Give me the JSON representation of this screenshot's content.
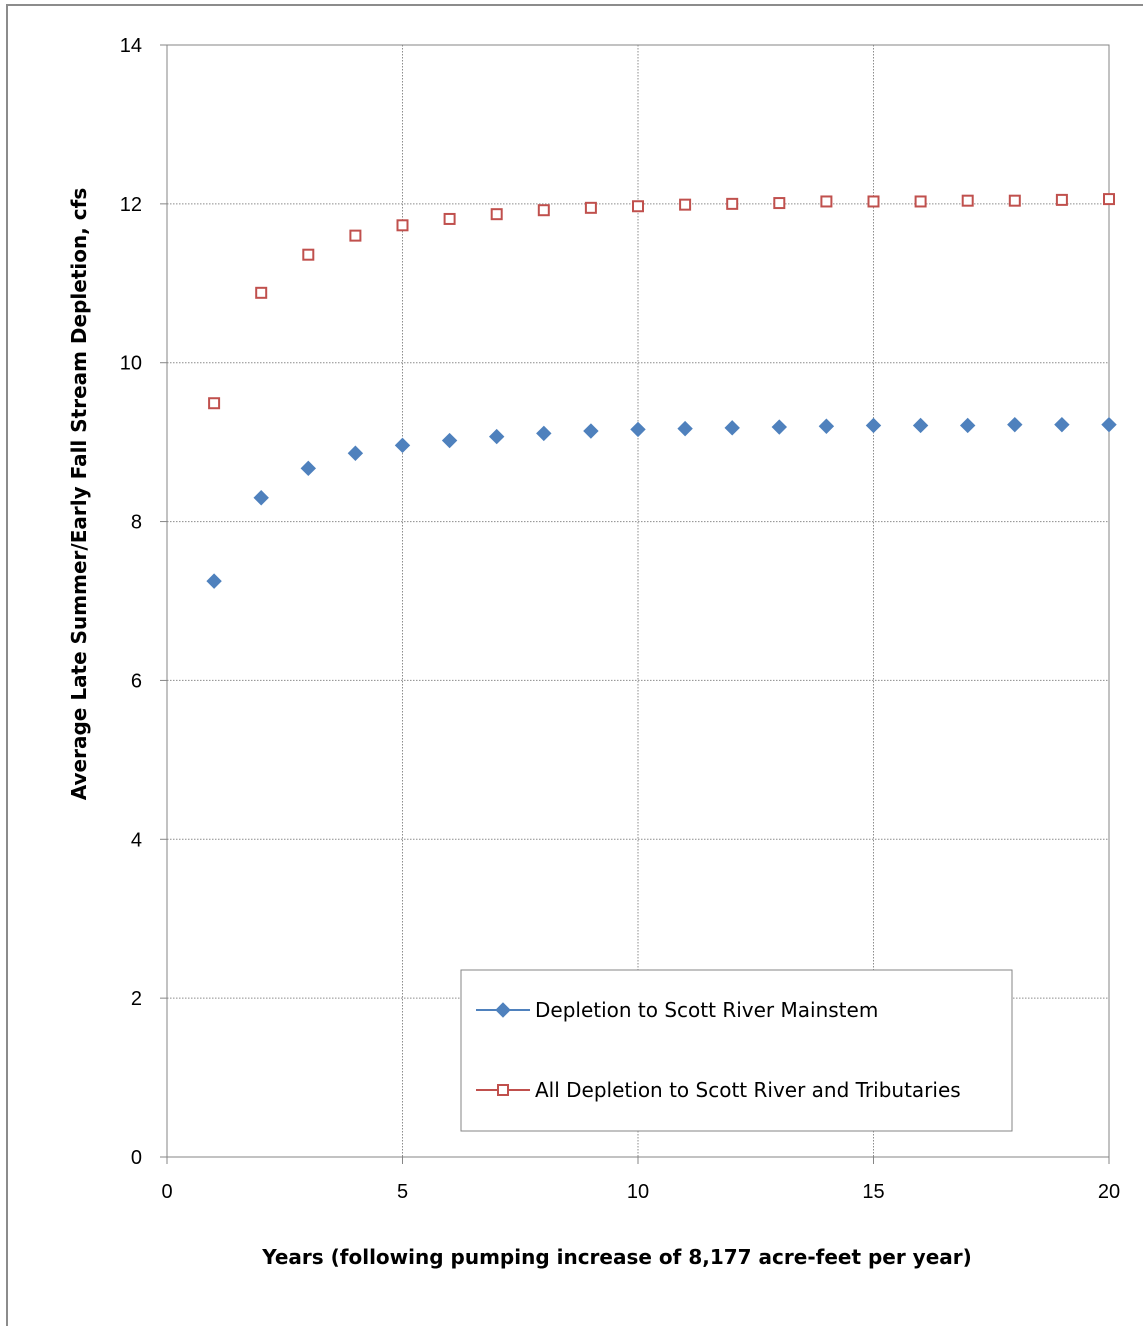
{
  "chart_data": {
    "type": "scatter",
    "title": "",
    "xlabel": "Years  (following pumping increase of 8,177 acre-feet per year)",
    "ylabel": "Average Late Summer/Early Fall Stream Depletion, cfs",
    "xlim": [
      0,
      20
    ],
    "ylim": [
      0,
      14
    ],
    "xticks": [
      0,
      5,
      10,
      15,
      20
    ],
    "yticks": [
      0,
      2,
      4,
      6,
      8,
      10,
      12,
      14
    ],
    "grid": true,
    "legend_position": "bottom-center",
    "series": [
      {
        "name": "Depletion to Scott River Mainstem",
        "marker": "filled-diamond",
        "color": "#4f81bd",
        "x": [
          1,
          2,
          3,
          4,
          5,
          6,
          7,
          8,
          9,
          10,
          11,
          12,
          13,
          14,
          15,
          16,
          17,
          18,
          19,
          20
        ],
        "y": [
          7.25,
          8.3,
          8.67,
          8.86,
          8.96,
          9.02,
          9.07,
          9.11,
          9.14,
          9.16,
          9.17,
          9.18,
          9.19,
          9.2,
          9.21,
          9.21,
          9.21,
          9.22,
          9.22,
          9.22
        ]
      },
      {
        "name": "All Depletion to Scott River and Tributaries",
        "marker": "open-square",
        "color": "#c0504d",
        "x": [
          1,
          2,
          3,
          4,
          5,
          6,
          7,
          8,
          9,
          10,
          11,
          12,
          13,
          14,
          15,
          16,
          17,
          18,
          19,
          20
        ],
        "y": [
          9.49,
          10.88,
          11.36,
          11.6,
          11.73,
          11.81,
          11.87,
          11.92,
          11.95,
          11.97,
          11.99,
          12.0,
          12.01,
          12.03,
          12.03,
          12.03,
          12.04,
          12.04,
          12.05,
          12.06
        ]
      }
    ]
  }
}
